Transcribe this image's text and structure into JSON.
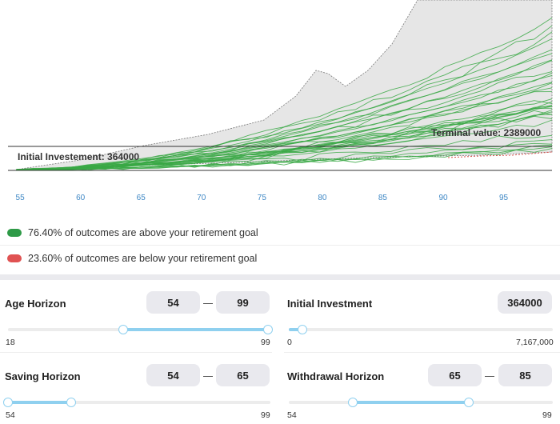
{
  "chart_data": {
    "type": "line",
    "x_ticks": [
      "55",
      "60",
      "65",
      "70",
      "75",
      "80",
      "85",
      "90",
      "95"
    ],
    "x_range": [
      54,
      99
    ],
    "annotations": {
      "initial": "Initial Investement: 364000",
      "terminal": "Terminal value: 2389000"
    },
    "colors": {
      "lines": "#3aa845",
      "band": "#e6e6e6",
      "below": "#d9534f",
      "axis": "#333333",
      "ticks": "#3f88c5"
    }
  },
  "legend": {
    "above": {
      "text": "76.40% of outcomes are above your retirement goal",
      "color": "#2e9a47"
    },
    "below": {
      "text": "23.60% of outcomes are below your retirement goal",
      "color": "#e05252"
    }
  },
  "controls": {
    "age_horizon": {
      "title": "Age Horizon",
      "from": "54",
      "to": "99",
      "min": "18",
      "max": "99"
    },
    "initial_investment": {
      "title": "Initial Investment",
      "value": "364000",
      "min": "0",
      "max": "7,167,000"
    },
    "saving_horizon": {
      "title": "Saving Horizon",
      "from": "54",
      "to": "65",
      "min": "54",
      "max": "99"
    },
    "withdrawal_horizon": {
      "title": "Withdrawal Horizon",
      "from": "65",
      "to": "85",
      "min": "54",
      "max": "99"
    }
  }
}
